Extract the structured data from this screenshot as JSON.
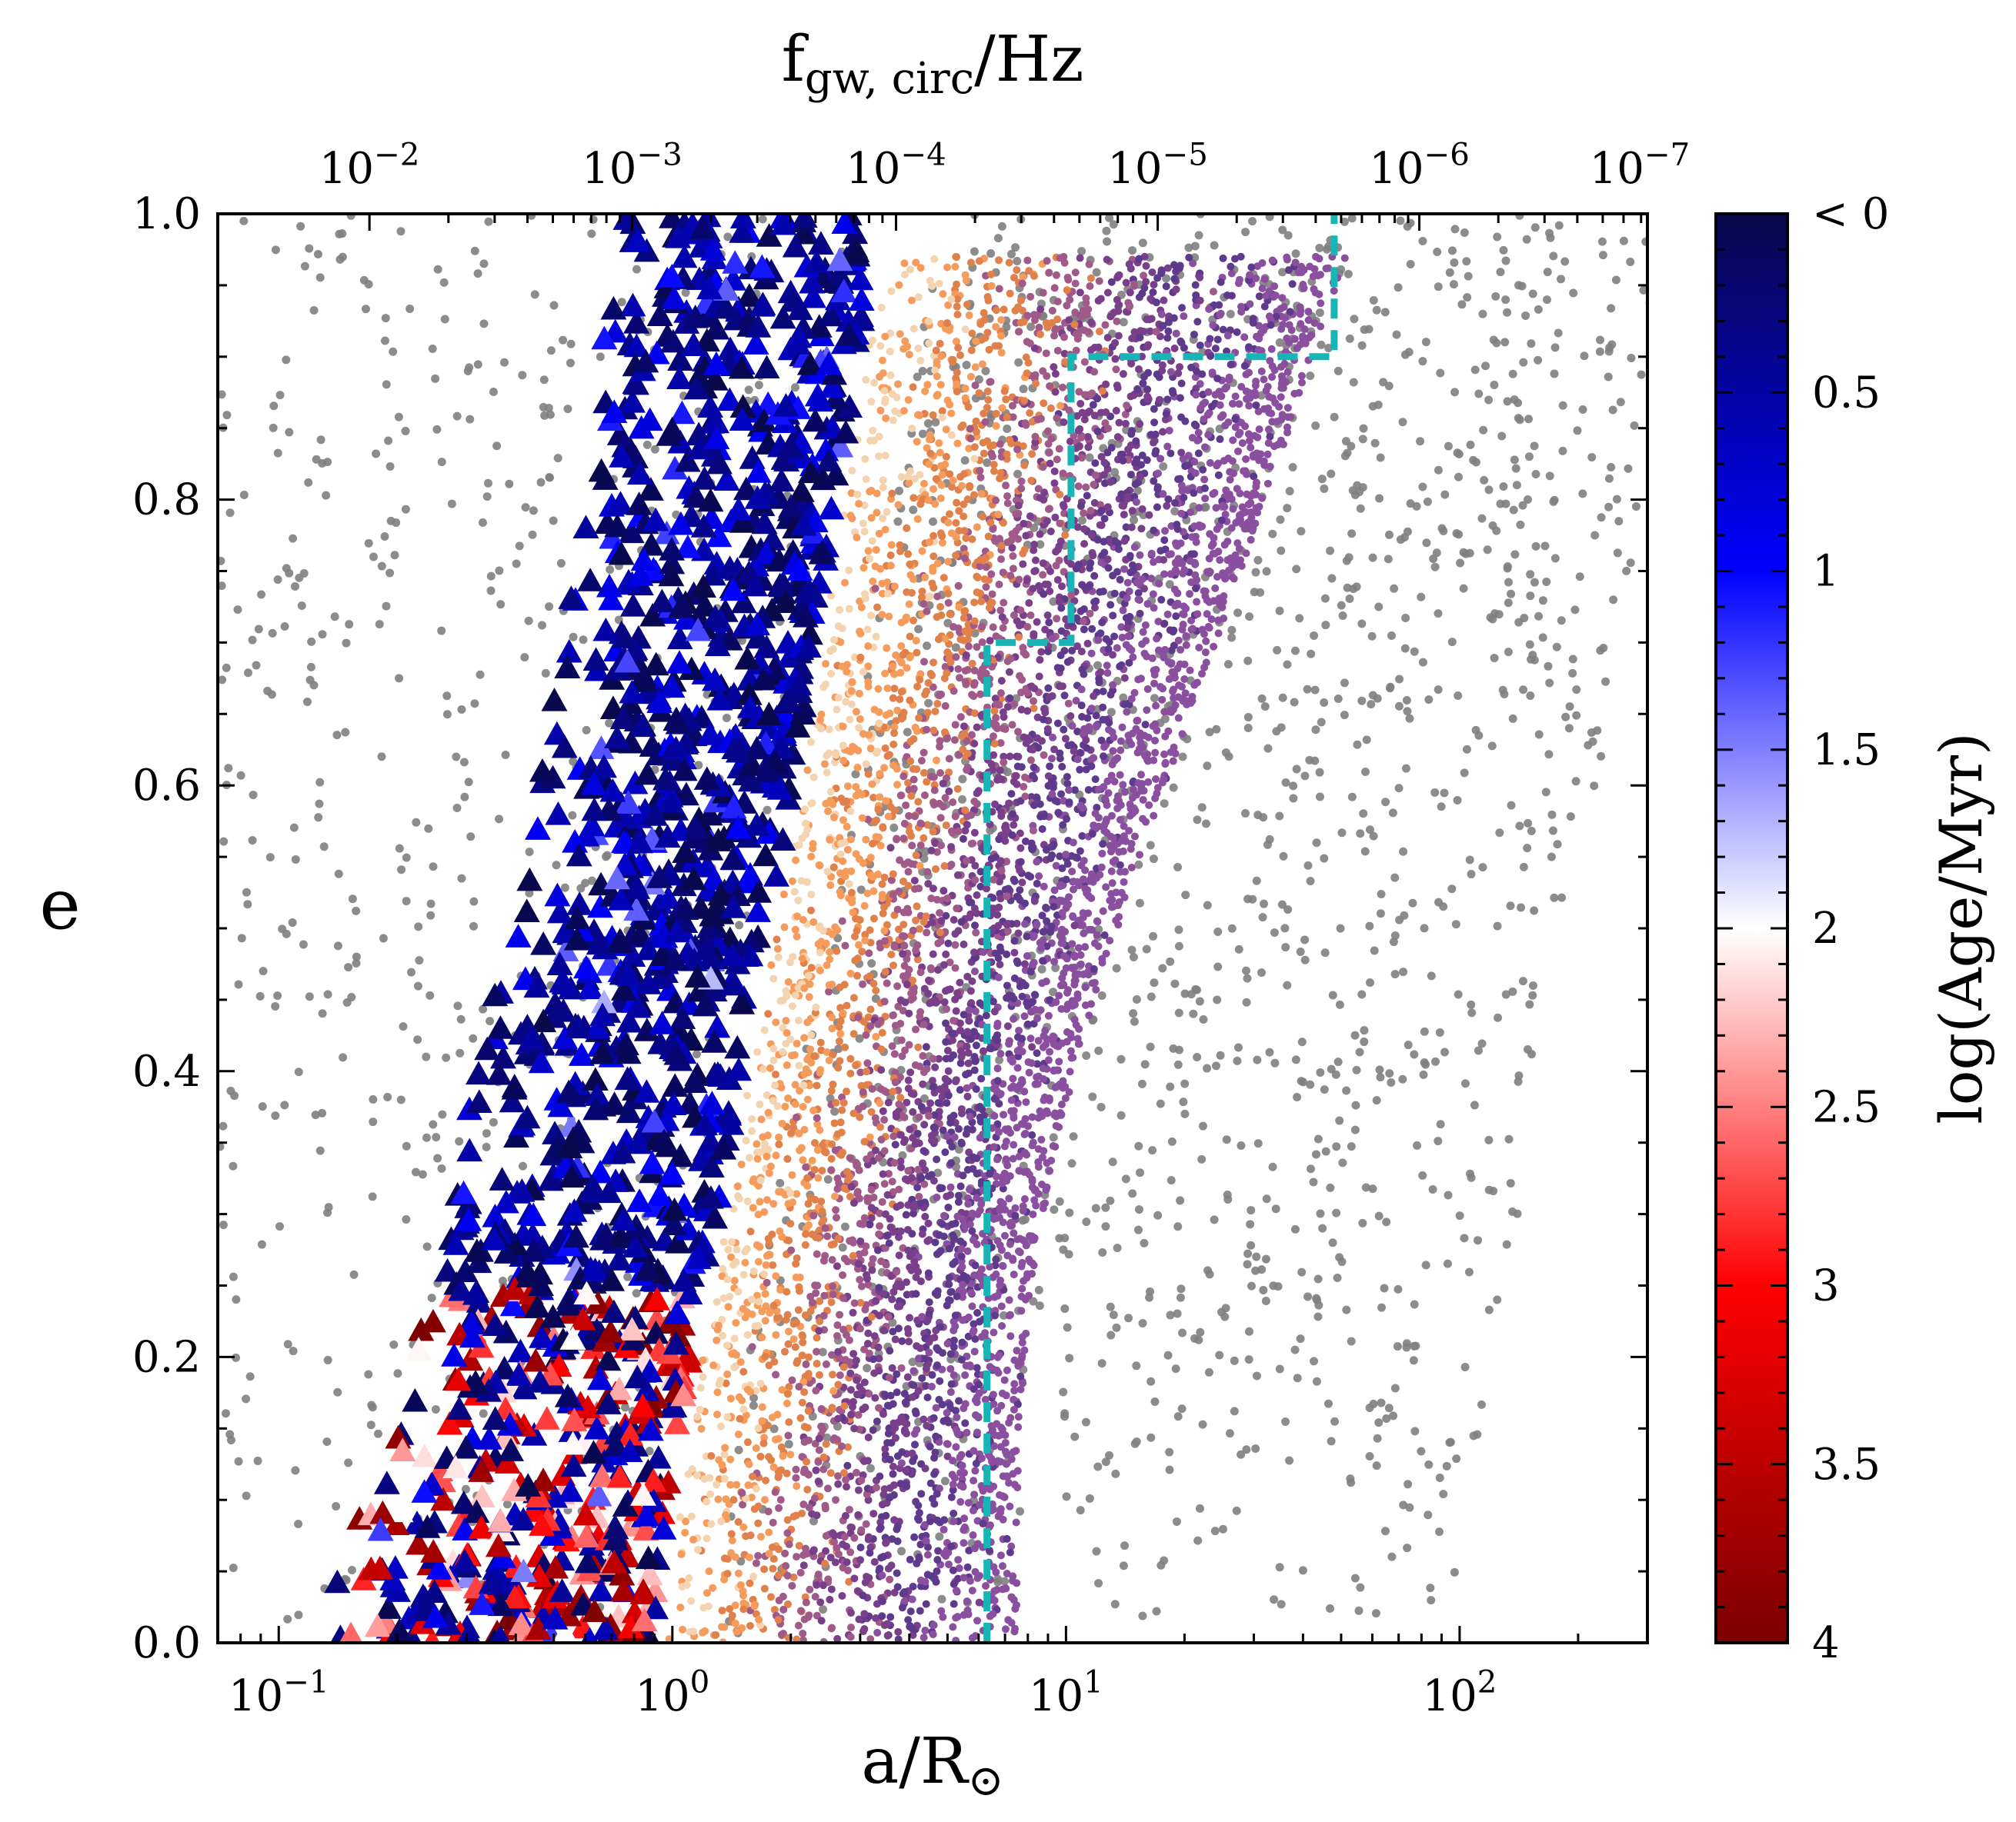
{
  "chart_data": {
    "type": "scatter",
    "title": "",
    "xlabel": "a/R",
    "xlabel_subscript": "⊙",
    "ylabel": "e",
    "top_xlabel": "f",
    "top_xlabel_subscript": "gw, circ",
    "top_xlabel_suffix": "/Hz",
    "xscale": "log",
    "xlim": [
      0.07,
      300
    ],
    "ylim": [
      0.0,
      1.0
    ],
    "x_ticks": [
      {
        "base": "10",
        "exp": "−1",
        "value": 0.1
      },
      {
        "base": "10",
        "exp": "0",
        "value": 1
      },
      {
        "base": "10",
        "exp": "1",
        "value": 10
      },
      {
        "base": "10",
        "exp": "2",
        "value": 100
      }
    ],
    "y_ticks": [
      "0.0",
      "0.2",
      "0.4",
      "0.6",
      "0.8",
      "1.0"
    ],
    "top_ticks": [
      {
        "base": "10",
        "exp": "−2",
        "a": 0.17
      },
      {
        "base": "10",
        "exp": "−3",
        "a": 0.79
      },
      {
        "base": "10",
        "exp": "−4",
        "a": 3.7
      },
      {
        "base": "10",
        "exp": "−5",
        "a": 17.1
      },
      {
        "base": "10",
        "exp": "−6",
        "a": 79
      },
      {
        "base": "10",
        "exp": "−7",
        "a": 370
      }
    ],
    "colorbar": {
      "label": "log(Age/Myr)",
      "range": [
        0,
        4
      ],
      "reversed": true,
      "tick_labels": [
        "< 0",
        "0.5",
        "1",
        "1.5",
        "2",
        "2.5",
        "3",
        "3.5",
        "4"
      ],
      "tick_values": [
        0,
        0.5,
        1,
        1.5,
        2,
        2.5,
        3,
        3.5,
        4
      ],
      "colormap": [
        "#08084a",
        "#0000ff",
        "#ffffff",
        "#ff0000",
        "#7a0000"
      ]
    },
    "boundary_line": {
      "color": "#17b5b5",
      "style": "dashed",
      "points": [
        [
          6.3,
          0.0
        ],
        [
          6.3,
          0.7
        ],
        [
          10.3,
          0.7
        ],
        [
          10.3,
          0.9
        ],
        [
          48,
          0.9
        ],
        [
          48,
          1.0
        ]
      ]
    },
    "series": [
      {
        "marker": "dot",
        "color": "#808080",
        "approx_count": 2000
      },
      {
        "marker": "triangle",
        "colored_by": "log(Age/Myr)",
        "approx_count": 1500
      },
      {
        "marker": "dot",
        "colored_by": "track",
        "palette": [
          "#f4d4b0",
          "#f59b5c",
          "#e0804a",
          "#a05a8a",
          "#7a3f8a",
          "#5e3a8c",
          "#8a4f9e"
        ],
        "approx_count": 6000
      }
    ]
  }
}
